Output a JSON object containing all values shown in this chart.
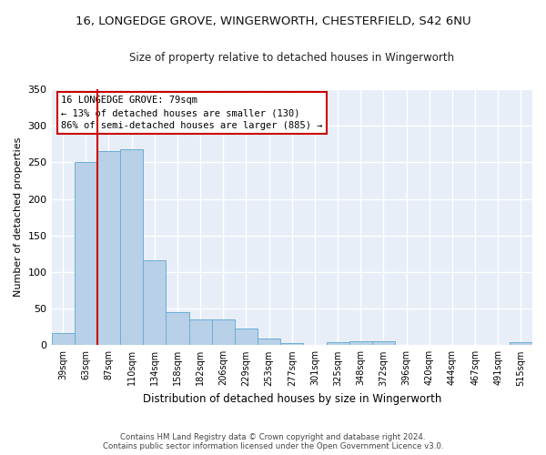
{
  "title": "16, LONGEDGE GROVE, WINGERWORTH, CHESTERFIELD, S42 6NU",
  "subtitle": "Size of property relative to detached houses in Wingerworth",
  "xlabel": "Distribution of detached houses by size in Wingerworth",
  "ylabel": "Number of detached properties",
  "categories": [
    "39sqm",
    "63sqm",
    "87sqm",
    "110sqm",
    "134sqm",
    "158sqm",
    "182sqm",
    "206sqm",
    "229sqm",
    "253sqm",
    "277sqm",
    "301sqm",
    "325sqm",
    "348sqm",
    "372sqm",
    "396sqm",
    "420sqm",
    "444sqm",
    "467sqm",
    "491sqm",
    "515sqm"
  ],
  "values": [
    16,
    250,
    265,
    268,
    116,
    45,
    35,
    35,
    23,
    9,
    3,
    0,
    4,
    5,
    5,
    0,
    0,
    0,
    0,
    0,
    4
  ],
  "bar_color": "#b8d0e8",
  "bar_edge_color": "#6aaed6",
  "background_color": "#e8eef8",
  "grid_color": "#ffffff",
  "property_label": "16 LONGEDGE GROVE: 79sqm",
  "annotation_line1": "← 13% of detached houses are smaller (130)",
  "annotation_line2": "86% of semi-detached houses are larger (885) →",
  "vline_color": "#cc0000",
  "vline_position": 1.5,
  "annotation_box_color": "#cc0000",
  "footer_line1": "Contains HM Land Registry data © Crown copyright and database right 2024.",
  "footer_line2": "Contains public sector information licensed under the Open Government Licence v3.0.",
  "ylim": [
    0,
    350
  ],
  "yticks": [
    0,
    50,
    100,
    150,
    200,
    250,
    300,
    350
  ],
  "fig_width": 6.0,
  "fig_height": 5.0,
  "dpi": 100
}
